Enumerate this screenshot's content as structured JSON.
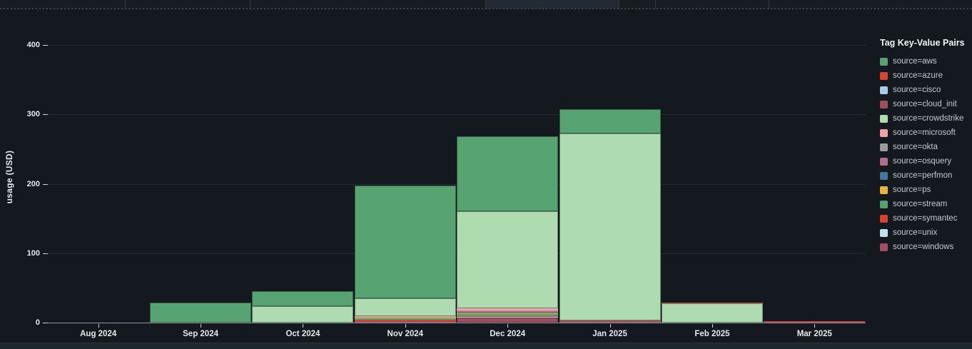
{
  "chart_data": {
    "type": "bar",
    "stacked": true,
    "title": "",
    "xlabel": "",
    "ylabel": "usage (USD)",
    "ylim": [
      0,
      420
    ],
    "y_ticks": [
      0,
      100,
      200,
      300,
      400
    ],
    "grid": "horizontal",
    "legend_title": "Tag Key-Value Pairs",
    "legend_position": "right",
    "categories": [
      "Aug 2024",
      "Sep 2024",
      "Oct 2024",
      "Nov 2024",
      "Dec 2024",
      "Jan 2025",
      "Feb 2025",
      "Mar 2025"
    ],
    "stack_order_bottom_to_top": [
      "windows",
      "unix",
      "symantec",
      "stream",
      "ps",
      "perfmon",
      "osquery",
      "okta",
      "microsoft",
      "crowdstrike",
      "cloud_init",
      "cisco",
      "azure",
      "aws"
    ],
    "series": [
      {
        "key": "aws",
        "label": "source=aws",
        "color": "#57a472",
        "values": [
          0,
          29,
          21,
          162,
          108,
          35,
          0,
          0
        ]
      },
      {
        "key": "azure",
        "label": "source=azure",
        "color": "#d8432f",
        "values": [
          0,
          0,
          0,
          0,
          0,
          0,
          1,
          0
        ]
      },
      {
        "key": "cisco",
        "label": "source=cisco",
        "color": "#a9cbe8",
        "values": [
          0,
          0,
          0,
          0,
          0,
          0,
          0,
          0
        ]
      },
      {
        "key": "cloud_init",
        "label": "source=cloud_init",
        "color": "#a14d5e",
        "values": [
          0,
          0,
          0,
          0,
          0,
          0,
          0,
          0
        ]
      },
      {
        "key": "crowdstrike",
        "label": "source=crowdstrike",
        "color": "#aedcb0",
        "values": [
          0,
          0,
          24,
          26,
          140,
          269,
          28,
          0
        ]
      },
      {
        "key": "microsoft",
        "label": "source=microsoft",
        "color": "#f2a1ab",
        "values": [
          0,
          0,
          0,
          1,
          3,
          0,
          0,
          0
        ]
      },
      {
        "key": "okta",
        "label": "source=okta",
        "color": "#9b9b9b",
        "values": [
          0,
          0,
          0,
          1,
          1,
          0,
          0,
          0
        ]
      },
      {
        "key": "osquery",
        "label": "source=osquery",
        "color": "#b06f88",
        "values": [
          0,
          0,
          0,
          0,
          2,
          0,
          0,
          0
        ]
      },
      {
        "key": "perfmon",
        "label": "source=perfmon",
        "color": "#41769d",
        "values": [
          0,
          0,
          0,
          0,
          1,
          0,
          0,
          0
        ]
      },
      {
        "key": "ps",
        "label": "source=ps",
        "color": "#e9b33b",
        "values": [
          0,
          0,
          0,
          1,
          1,
          0,
          0,
          0
        ]
      },
      {
        "key": "stream",
        "label": "source=stream",
        "color": "#55a26c",
        "values": [
          0,
          0,
          0,
          2,
          3,
          0,
          0,
          0
        ]
      },
      {
        "key": "symantec",
        "label": "source=symantec",
        "color": "#d9422e",
        "values": [
          0,
          0,
          0,
          2,
          1,
          0,
          0,
          0.5
        ]
      },
      {
        "key": "unix",
        "label": "source=unix",
        "color": "#bfdff2",
        "values": [
          0,
          0,
          0,
          0,
          1,
          0,
          0,
          0
        ]
      },
      {
        "key": "windows",
        "label": "source=windows",
        "color": "#a24e61",
        "values": [
          0,
          0,
          0,
          2,
          7,
          3,
          0,
          1
        ]
      }
    ]
  }
}
